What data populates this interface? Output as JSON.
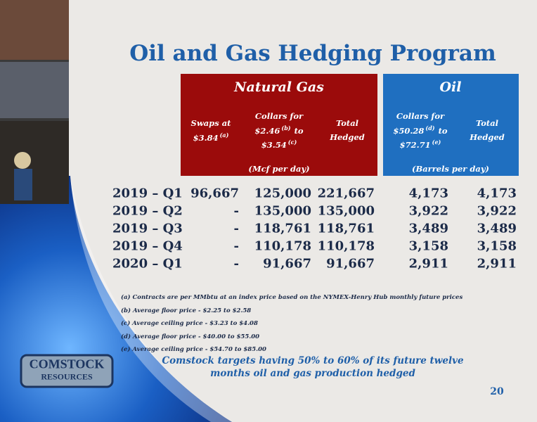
{
  "title": "Oil and Gas Hedging Program",
  "groups": [
    {
      "label": "Natural Gas",
      "unit": "(Mcf per day)"
    },
    {
      "label": "Oil",
      "unit": "(Barrels per day)"
    }
  ],
  "columns": [
    [
      {
        "text": "Swaps at"
      },
      {
        "text": "$3.84",
        "sup": "(a)"
      }
    ],
    [
      {
        "text": "Collars for"
      },
      {
        "text": "$2.46",
        "sup": "(b)",
        "after": "to"
      },
      {
        "text": "$3.54",
        "sup": "(c)"
      }
    ],
    [
      {
        "text": "Total"
      },
      {
        "text": "Hedged"
      }
    ],
    [
      {
        "text": "Collars for"
      },
      {
        "text": "$50.28",
        "sup": "(d)",
        "after": "to"
      },
      {
        "text": "$72.71",
        "sup": "(e)"
      }
    ],
    [
      {
        "text": "Total"
      },
      {
        "text": "Hedged"
      }
    ]
  ],
  "rows": [
    [
      "2019 – Q1",
      "96,667",
      "125,000",
      "221,667",
      "4,173",
      "4,173"
    ],
    [
      "2019 – Q2",
      "-",
      "135,000",
      "135,000",
      "3,922",
      "3,922"
    ],
    [
      "2019 – Q3",
      "-",
      "118,761",
      "118,761",
      "3,489",
      "3,489"
    ],
    [
      "2019 – Q4",
      "-",
      "110,178",
      "110,178",
      "3,158",
      "3,158"
    ],
    [
      "2020 – Q1",
      "-",
      "91,667",
      "91,667",
      "2,911",
      "2,911"
    ]
  ],
  "footnotes": [
    "(a) Contracts are per MMbtu at an index price based on the NYMEX-Henry Hub monthly future prices",
    "(b) Average floor price - $2.25 to $2.58",
    "(c) Average ceiling price - $3.23 to $4.08",
    "(d) Average floor price - $40.00 to $55.00",
    "(e) Average ceiling price - $54.70 to $85.00"
  ],
  "note": [
    "Comstock targets having 50% to 60% of its future twelve",
    "months oil and gas production hedged"
  ],
  "logo": [
    "COMSTOCK",
    "RESOURCES"
  ],
  "page_number": "20"
}
